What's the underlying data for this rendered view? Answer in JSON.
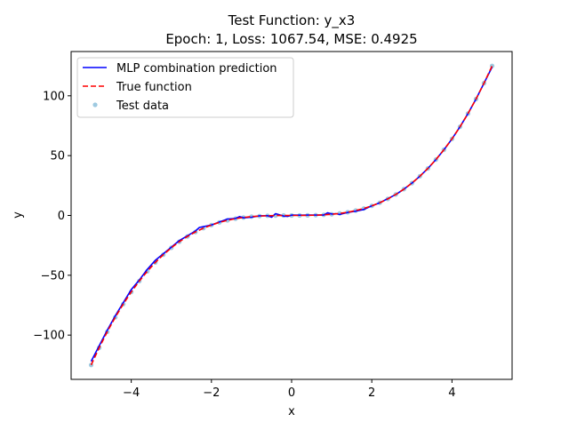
{
  "chart_data": {
    "type": "line",
    "title": "Test Function: y_x3",
    "subtitle": "Epoch: 1, Loss: 1067.54, MSE: 0.4925",
    "xlabel": "x",
    "ylabel": "y",
    "xlim": [
      -5.5,
      5.5
    ],
    "ylim": [
      -137,
      137
    ],
    "xticks": [
      -4,
      -2,
      0,
      2,
      4
    ],
    "yticks": [
      -100,
      -50,
      0,
      50,
      100
    ],
    "xtick_labels": [
      "−4",
      "−2",
      "0",
      "2",
      "4"
    ],
    "ytick_labels": [
      "−100",
      "−50",
      "0",
      "50",
      "100"
    ],
    "grid": false,
    "legend_position": "top-left",
    "colors": {
      "prediction": "#0000ff",
      "true_function": "#ff0000",
      "test_data": "#9ecae1"
    },
    "series": [
      {
        "name": "MLP combination prediction",
        "style": "solid",
        "x": [
          -5.0,
          -4.6,
          -4.4,
          -4.2,
          -4.0,
          -3.8,
          -3.6,
          -3.4,
          -3.2,
          -3.0,
          -2.8,
          -2.6,
          -2.4,
          -2.3,
          -2.0,
          -1.8,
          -1.6,
          -1.4,
          -1.3,
          -1.2,
          -1.0,
          -0.8,
          -0.6,
          -0.5,
          -0.4,
          -0.2,
          -0.1,
          0.0,
          0.2,
          0.4,
          0.6,
          0.8,
          0.9,
          1.0,
          1.1,
          1.2,
          1.4,
          1.6,
          1.8,
          2.0,
          2.2,
          2.4,
          2.6,
          2.8,
          3.0,
          3.2,
          3.4,
          3.6,
          3.8,
          4.0,
          4.2,
          4.4,
          4.6,
          4.8,
          5.0
        ],
        "y": [
          -122.0,
          -96.0,
          -84.0,
          -73.0,
          -62.0,
          -54.0,
          -45.0,
          -37.5,
          -32.0,
          -26.5,
          -21.0,
          -17.0,
          -13.0,
          -10.0,
          -8.0,
          -5.5,
          -3.0,
          -2.5,
          -1.0,
          -2.0,
          -1.5,
          -0.3,
          -0.2,
          -1.5,
          1.5,
          -0.5,
          -0.8,
          0.3,
          0.2,
          0.3,
          0.4,
          0.3,
          2.2,
          1.2,
          1.5,
          0.8,
          2.5,
          3.6,
          5.0,
          8.0,
          10.6,
          14.0,
          17.5,
          22.0,
          27.0,
          32.8,
          39.3,
          46.7,
          54.9,
          64.0,
          74.1,
          85.2,
          97.3,
          110.6,
          124.0
        ]
      },
      {
        "name": "True function",
        "style": "dashed",
        "x": [
          -5.0,
          -4.8,
          -4.6,
          -4.4,
          -4.2,
          -4.0,
          -3.8,
          -3.6,
          -3.4,
          -3.2,
          -3.0,
          -2.8,
          -2.6,
          -2.4,
          -2.2,
          -2.0,
          -1.8,
          -1.6,
          -1.4,
          -1.2,
          -1.0,
          -0.8,
          -0.6,
          -0.4,
          -0.2,
          0.0,
          0.2,
          0.4,
          0.6,
          0.8,
          1.0,
          1.2,
          1.4,
          1.6,
          1.8,
          2.0,
          2.2,
          2.4,
          2.6,
          2.8,
          3.0,
          3.2,
          3.4,
          3.6,
          3.8,
          4.0,
          4.2,
          4.4,
          4.6,
          4.8,
          5.0
        ],
        "y": [
          -125.0,
          -110.6,
          -97.3,
          -85.2,
          -74.1,
          -64.0,
          -54.9,
          -46.7,
          -39.3,
          -32.8,
          -27.0,
          -22.0,
          -17.6,
          -13.8,
          -10.6,
          -8.0,
          -5.8,
          -4.1,
          -2.7,
          -1.7,
          -1.0,
          -0.5,
          -0.2,
          -0.1,
          0.0,
          0.0,
          0.0,
          0.1,
          0.2,
          0.5,
          1.0,
          1.7,
          2.7,
          4.1,
          5.8,
          8.0,
          10.6,
          13.8,
          17.6,
          22.0,
          27.0,
          32.8,
          39.3,
          46.7,
          54.9,
          64.0,
          74.1,
          85.2,
          97.3,
          110.6,
          125.0
        ]
      },
      {
        "name": "Test data",
        "style": "points",
        "x": [
          -5.0,
          -4.8,
          -4.6,
          -4.4,
          -4.2,
          -4.0,
          -3.8,
          -3.6,
          -3.4,
          -3.2,
          -3.0,
          -2.8,
          -2.6,
          -2.4,
          -2.2,
          -2.0,
          -1.8,
          -1.6,
          -1.4,
          -1.2,
          -1.0,
          -0.8,
          -0.6,
          -0.4,
          -0.2,
          0.0,
          0.2,
          0.4,
          0.6,
          0.8,
          1.0,
          1.2,
          1.4,
          1.6,
          1.8,
          2.0,
          2.2,
          2.4,
          2.6,
          2.8,
          3.0,
          3.2,
          3.4,
          3.6,
          3.8,
          4.0,
          4.2,
          4.4,
          4.6,
          4.8,
          5.0
        ],
        "y": [
          -125.0,
          -110.6,
          -97.3,
          -85.2,
          -74.1,
          -64.0,
          -54.9,
          -46.7,
          -39.3,
          -32.8,
          -27.0,
          -22.0,
          -17.6,
          -13.8,
          -10.6,
          -8.0,
          -5.8,
          -4.1,
          -2.7,
          -1.7,
          -1.0,
          -0.5,
          -0.2,
          -0.1,
          0.0,
          0.0,
          0.0,
          0.1,
          0.2,
          0.5,
          1.0,
          1.7,
          2.7,
          4.1,
          5.8,
          8.0,
          10.6,
          13.8,
          17.6,
          22.0,
          27.0,
          32.8,
          39.3,
          46.7,
          54.9,
          64.0,
          74.1,
          85.2,
          97.3,
          110.6,
          125.0
        ]
      }
    ]
  }
}
